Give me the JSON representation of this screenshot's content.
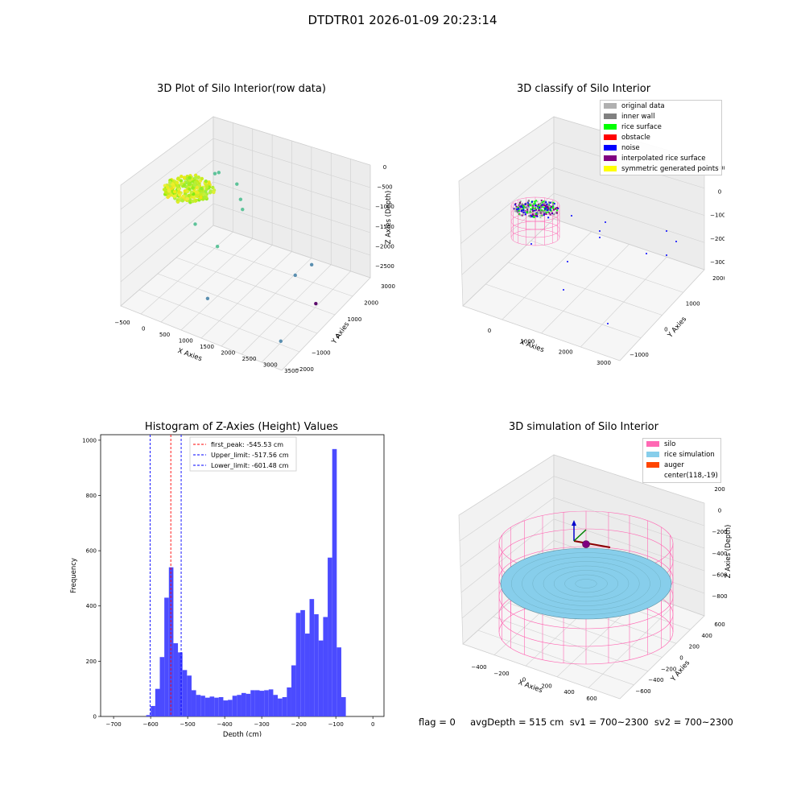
{
  "page": {
    "title": "DTDTR01 2026-01-09 20:23:14",
    "footer": "flag = 0     avgDepth = 515 cm  sv1 = 700~2300  sv2 = 700~2300"
  },
  "colors": {
    "hist_bar": "#4b4bff",
    "peak_line": "#ff0000",
    "limit_line": "#0000ff",
    "silo": "#ff69b4",
    "rice_simulation": "#87ceeb",
    "auger": "#ff4500",
    "pane": "#f2f2f2",
    "grid": "#d0d0d0"
  },
  "chart_data": [
    {
      "type": "scatter",
      "projection": "3d",
      "title": "3D Plot of Silo Interior(row data)",
      "xlabel": "X Axies",
      "ylabel": "Y Axies",
      "zlabel": "Z Axies (Depth)",
      "x_ticks": [
        "−500",
        "0",
        "500",
        "1000",
        "1500",
        "2000",
        "2500",
        "3000",
        "3500"
      ],
      "y_ticks": [
        "−2000",
        "−1000",
        "0",
        "1000",
        "2000",
        "3000"
      ],
      "z_ticks": [
        "0",
        "−500",
        "−1000",
        "−1500",
        "−2000",
        "−2500"
      ],
      "points_note_hidden": "",
      "dense_cluster": {
        "x_range": [
          -200,
          500
        ],
        "y_range": [
          0,
          1200
        ],
        "z_range": [
          -700,
          -400
        ],
        "color": "yellow-green"
      },
      "points": [
        {
          "x": 500,
          "y": 700,
          "z": -1200
        },
        {
          "x": 700,
          "y": 500,
          "z": -1100
        },
        {
          "x": 1000,
          "y": 900,
          "z": -1300
        },
        {
          "x": 1100,
          "y": 900,
          "z": -1500
        },
        {
          "x": 1200,
          "y": 800,
          "z": -1600
        },
        {
          "x": 300,
          "y": 0,
          "z": -1800
        },
        {
          "x": 900,
          "y": 0,
          "z": -2000
        },
        {
          "x": 2300,
          "y": 1500,
          "z": -2500
        },
        {
          "x": 2700,
          "y": 1600,
          "z": -2300
        },
        {
          "x": 3000,
          "y": 1200,
          "z": -2700
        },
        {
          "x": 1200,
          "y": -1200,
          "z": -2400
        },
        {
          "x": 3300,
          "y": -1500,
          "z": -2500
        }
      ]
    },
    {
      "type": "scatter",
      "projection": "3d",
      "title": "3D classify of Silo Interior",
      "xlabel": "X Axies",
      "ylabel": "Y Axies",
      "zlabel": "Z Axies (Depth)",
      "x_ticks": [
        "0",
        "1000",
        "2000",
        "3000"
      ],
      "y_ticks": [
        "−1000",
        "0",
        "1000",
        "2000"
      ],
      "z_ticks": [
        "1000",
        "0",
        "−1000",
        "−2000",
        "−3000"
      ],
      "legend": [
        {
          "label": "original data",
          "color": "#b0b0b0"
        },
        {
          "label": "inner wall",
          "color": "#808080"
        },
        {
          "label": "rice surface",
          "color": "#00ff00"
        },
        {
          "label": "obstacle",
          "color": "#ff0000"
        },
        {
          "label": "noise",
          "color": "#0000ff"
        },
        {
          "label": "interpolated rice surface",
          "color": "#800080"
        },
        {
          "label": "symmetric generated points",
          "color": "#ffff00"
        }
      ],
      "legend_placement": "top-right"
    },
    {
      "type": "bar",
      "title": "Histogram of Z-Axies (Height) Values",
      "xlabel": "Depth (cm)",
      "ylabel": "Frequency",
      "xlim": [
        -735,
        30
      ],
      "ylim": [
        0,
        1020
      ],
      "x_ticks": [
        -700,
        -600,
        -500,
        -400,
        -300,
        -200,
        -100,
        0
      ],
      "y_ticks": [
        0,
        200,
        400,
        600,
        800,
        1000
      ],
      "x_tick_labels": [
        "−700",
        "−600",
        "−500",
        "−400",
        "−300",
        "−200",
        "−100",
        "0"
      ],
      "y_tick_labels": [
        "0",
        "200",
        "400",
        "600",
        "800",
        "1000"
      ],
      "bin_start": -612,
      "bin_width": 12.25,
      "values": [
        5,
        38,
        100,
        215,
        430,
        540,
        265,
        232,
        168,
        148,
        95,
        78,
        75,
        68,
        72,
        68,
        70,
        58,
        60,
        75,
        78,
        85,
        82,
        95,
        95,
        93,
        95,
        98,
        78,
        65,
        70,
        105,
        185,
        375,
        385,
        300,
        425,
        370,
        275,
        360,
        575,
        968,
        250,
        70
      ],
      "lines": [
        {
          "label": "first_peak: -545.53 cm",
          "x": -545.53,
          "color": "#ff0000"
        },
        {
          "label": "Upper_limit: -517.56 cm",
          "x": -517.56,
          "color": "#0000ff"
        },
        {
          "label": "Lower_limit: -601.48 cm",
          "x": -601.48,
          "color": "#0000ff"
        }
      ],
      "legend_placement": "top-center"
    },
    {
      "type": "surface",
      "projection": "3d",
      "title": "3D simulation of Silo Interior",
      "xlabel": "X Axies",
      "ylabel": "Y Axies",
      "zlabel": "Z Axies (Depth)",
      "x_ticks": [
        "−400",
        "−200",
        "0",
        "200",
        "400",
        "600"
      ],
      "y_ticks": [
        "−600",
        "−400",
        "−200",
        "0",
        "200",
        "400",
        "600"
      ],
      "z_ticks": [
        "200",
        "0",
        "−200",
        "−400",
        "−600",
        "−800"
      ],
      "legend": [
        {
          "label": "silo",
          "color": "#ff69b4"
        },
        {
          "label": "rice simulation",
          "color": "#87ceeb"
        },
        {
          "label": "auger",
          "color": "#ff4500"
        },
        {
          "label": "center(118,-19)",
          "color": ""
        }
      ],
      "legend_placement": "top-right"
    }
  ]
}
